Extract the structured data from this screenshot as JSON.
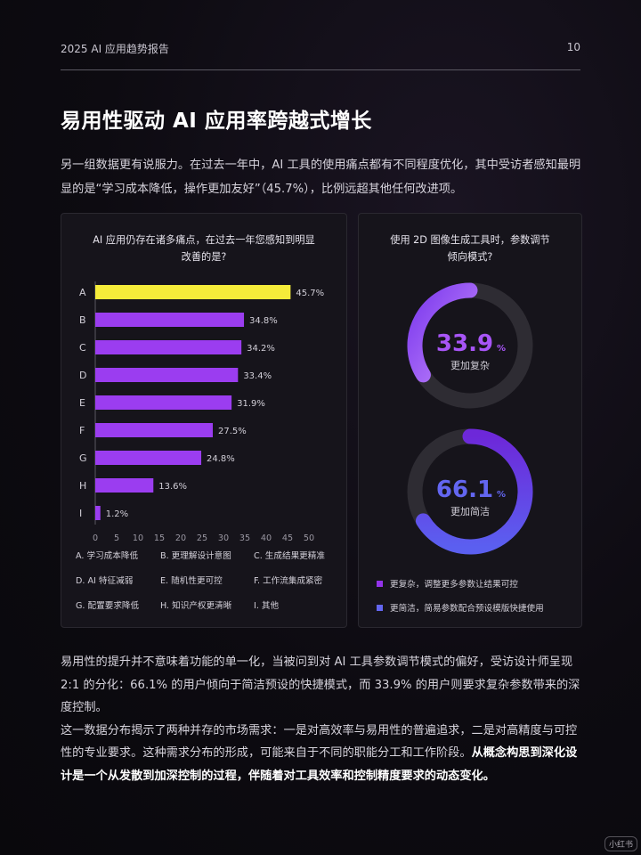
{
  "header": {
    "report": "2025 AI 应用趋势报告",
    "page": "10"
  },
  "title": "易用性驱动 AI 应用率跨越式增长",
  "intro": "另一组数据更有说服力。在过去一年中，AI 工具的使用痛点都有不同程度优化，其中受访者感知最明显的是“学习成本降低，操作更加友好”（45.7%），比例远超其他任何改进项。",
  "bar_card": {
    "title": "AI 应用仍存在诸多痛点，在过去一年您感知到明显改善的是?",
    "legend": [
      "A. 学习成本降低",
      "B. 更理解设计意图",
      "C. 生成结果更精准",
      "D. AI 特征减弱",
      "E. 随机性更可控",
      "F. 工作流集成紧密",
      "G. 配置要求降低",
      "H. 知识产权更清晰",
      "I. 其他"
    ]
  },
  "donut_card": {
    "title": "使用 2D 图像生成工具时，参数调节倾向模式?",
    "complex": {
      "value": "33.9",
      "unit": "%",
      "label": "更加复杂",
      "color": "#a855f7"
    },
    "simple": {
      "value": "66.1",
      "unit": "%",
      "label": "更加简洁",
      "color": "#6366f1"
    },
    "legend": [
      {
        "text": "更复杂，调整更多参数让结果可控",
        "color": "#9333ea"
      },
      {
        "text": "更简洁，简易参数配合预设模版快捷使用",
        "color": "#6366f1"
      }
    ]
  },
  "chart_data": [
    {
      "type": "bar",
      "orientation": "horizontal",
      "title": "AI 应用仍存在诸多痛点，在过去一年您感知到明显改善的是?",
      "categories": [
        "A",
        "B",
        "C",
        "D",
        "E",
        "F",
        "G",
        "H",
        "I"
      ],
      "values": [
        45.7,
        34.8,
        34.2,
        33.4,
        31.9,
        27.5,
        24.8,
        13.6,
        1.2
      ],
      "value_labels": [
        "45.7%",
        "34.8%",
        "34.2%",
        "33.4%",
        "31.9%",
        "27.5%",
        "24.8%",
        "13.6%",
        "1.2%"
      ],
      "xlim": [
        0,
        50
      ],
      "xticks": [
        0,
        5,
        10,
        15,
        20,
        25,
        30,
        35,
        40,
        45,
        50
      ],
      "highlight_color": "#f5ec3a",
      "bar_color": "#9b3df0",
      "grid": false
    },
    {
      "type": "pie",
      "variant": "donut",
      "title": "使用 2D 图像生成工具时，参数调节倾向模式?",
      "slices": [
        {
          "name": "更加复杂",
          "value": 33.9
        },
        {
          "name": "更加简洁",
          "value": 66.1
        }
      ]
    }
  ],
  "body": {
    "p1": "易用性的提升并不意味着功能的单一化，当被问到对 AI 工具参数调节模式的偏好，受访设计师呈现 2:1 的分化：66.1% 的用户倾向于简洁预设的快捷模式，而 33.9% 的用户则要求复杂参数带来的深度控制。",
    "p2_normal": "这一数据分布揭示了两种并存的市场需求：一是对高效率与易用性的普遍追求，二是对高精度与可控性的专业要求。这种需求分布的形成，可能来自于不同的职能分工和工作阶段。",
    "p2_bold": "从概念构思到深化设计是一个从发散到加深控制的过程，伴随着对工具效率和控制精度要求的动态变化。"
  },
  "watermark": "小红书"
}
